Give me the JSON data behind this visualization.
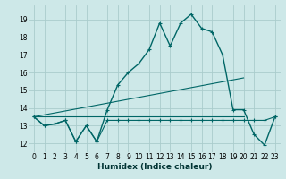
{
  "xlabel": "Humidex (Indice chaleur)",
  "bg_color": "#cde8e8",
  "grid_color": "#aacccc",
  "line_color": "#006666",
  "xlim": [
    -0.5,
    23.5
  ],
  "ylim": [
    11.5,
    19.8
  ],
  "yticks": [
    12,
    13,
    14,
    15,
    16,
    17,
    18,
    19
  ],
  "xticks": [
    0,
    1,
    2,
    3,
    4,
    5,
    6,
    7,
    8,
    9,
    10,
    11,
    12,
    13,
    14,
    15,
    16,
    17,
    18,
    19,
    20,
    21,
    22,
    23
  ],
  "series_main": {
    "x": [
      0,
      1,
      2,
      3,
      4,
      5,
      6,
      7,
      8,
      9,
      10,
      11,
      12,
      13,
      14,
      15,
      16,
      17,
      18,
      19,
      20,
      21,
      22,
      23
    ],
    "y": [
      13.5,
      13.0,
      13.1,
      13.3,
      12.1,
      13.0,
      12.1,
      13.9,
      15.3,
      16.0,
      16.5,
      17.3,
      18.8,
      17.5,
      18.8,
      19.3,
      18.5,
      18.3,
      17.0,
      13.9,
      13.9,
      12.5,
      11.9,
      13.5
    ]
  },
  "series_low": {
    "x": [
      0,
      1,
      2,
      3,
      4,
      5,
      6,
      7,
      8,
      9,
      10,
      11,
      12,
      13,
      14,
      15,
      16,
      17,
      18,
      19,
      20,
      21,
      22,
      23
    ],
    "y": [
      13.5,
      13.0,
      13.1,
      13.3,
      12.1,
      13.0,
      12.1,
      13.3,
      13.3,
      13.3,
      13.3,
      13.3,
      13.3,
      13.3,
      13.3,
      13.3,
      13.3,
      13.3,
      13.3,
      13.3,
      13.3,
      13.3,
      13.3,
      13.5
    ]
  },
  "series_diag": {
    "x": [
      0,
      20
    ],
    "y": [
      13.5,
      15.7
    ]
  },
  "series_flat": {
    "x": [
      0,
      20
    ],
    "y": [
      13.5,
      13.5
    ]
  }
}
